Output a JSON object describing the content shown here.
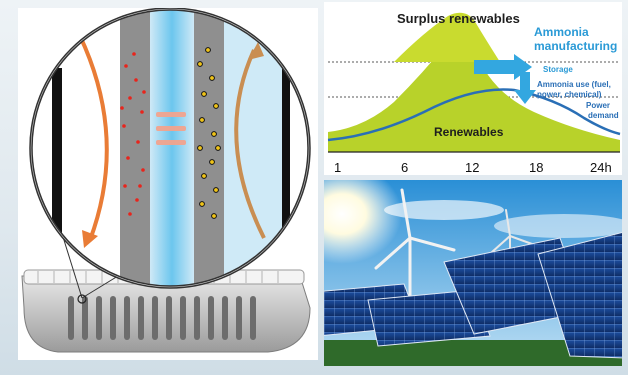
{
  "chart_data": {
    "type": "area",
    "x_ticks": [
      "1",
      "6",
      "12",
      "18",
      "24h"
    ],
    "labels": {
      "surplus": "Surplus renewables",
      "ammonia_line1": "Ammonia",
      "ammonia_line2": "manufacturing",
      "storage": "Storage",
      "ammonia_use_line1": "Ammonia use (fuel,",
      "ammonia_use_line2": "power, chemical)",
      "power_demand_line1": "Power",
      "power_demand_line2": "demand",
      "renewables": "Renewables"
    },
    "colors": {
      "renewables_area": "#b8d22a",
      "surplus_area": "#c9db2f",
      "demand_line": "#2a6fb6",
      "arrow": "#33a7e0",
      "dotted_lines": "#5a5a5a"
    }
  },
  "photo": {
    "subject": "solar panels and wind turbines under blue sky"
  }
}
